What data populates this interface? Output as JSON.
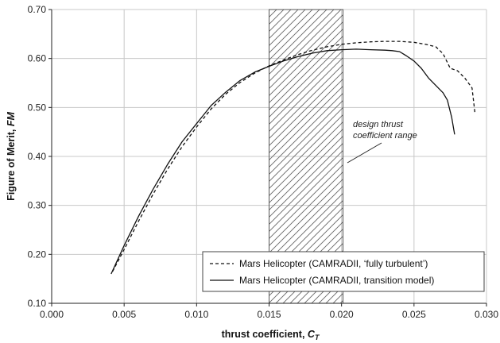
{
  "chart_data": {
    "type": "line",
    "xlabel": "thrust coefficient, ",
    "xlabel_var": "C",
    "xlabel_sub": "T",
    "ylabel": "Figure of Merit, ",
    "ylabel_var": "FM",
    "xlim": [
      0.0,
      0.03
    ],
    "ylim": [
      0.1,
      0.7
    ],
    "x_ticks": [
      "0.000",
      "0.005",
      "0.010",
      "0.015",
      "0.020",
      "0.025",
      "0.030"
    ],
    "y_ticks": [
      "0.10",
      "0.20",
      "0.30",
      "0.40",
      "0.50",
      "0.60",
      "0.70"
    ],
    "grid": true,
    "legend_position": "bottom-right",
    "shaded_region": {
      "x_start": 0.015,
      "x_end": 0.0201,
      "pattern": "diagonal-hatch"
    },
    "annotation": {
      "line1": "design thrust",
      "line2": "coefficient range"
    },
    "series": [
      {
        "name": "Mars Helicopter (CAMRADII, ‘fully turbulent’)",
        "style": "dashed",
        "x": [
          0.0042,
          0.005,
          0.006,
          0.007,
          0.008,
          0.009,
          0.01,
          0.011,
          0.012,
          0.013,
          0.014,
          0.015,
          0.016,
          0.017,
          0.018,
          0.019,
          0.02,
          0.021,
          0.022,
          0.023,
          0.024,
          0.025,
          0.0258,
          0.0265,
          0.027,
          0.0275,
          0.028,
          0.0285,
          0.029,
          0.0292
        ],
        "y": [
          0.165,
          0.21,
          0.268,
          0.323,
          0.374,
          0.42,
          0.46,
          0.497,
          0.527,
          0.551,
          0.57,
          0.585,
          0.597,
          0.608,
          0.617,
          0.624,
          0.629,
          0.632,
          0.634,
          0.635,
          0.635,
          0.633,
          0.629,
          0.624,
          0.61,
          0.58,
          0.575,
          0.56,
          0.54,
          0.49
        ]
      },
      {
        "name": "Mars Helicopter (CAMRADII, transition model)",
        "style": "solid",
        "x": [
          0.0041,
          0.005,
          0.006,
          0.007,
          0.008,
          0.009,
          0.01,
          0.011,
          0.012,
          0.013,
          0.014,
          0.015,
          0.016,
          0.017,
          0.018,
          0.019,
          0.02,
          0.021,
          0.022,
          0.023,
          0.0235,
          0.024,
          0.0245,
          0.025,
          0.0255,
          0.026,
          0.0265,
          0.027,
          0.0273,
          0.0276,
          0.0278
        ],
        "y": [
          0.16,
          0.218,
          0.278,
          0.333,
          0.384,
          0.43,
          0.467,
          0.504,
          0.531,
          0.555,
          0.572,
          0.584,
          0.595,
          0.604,
          0.611,
          0.616,
          0.618,
          0.619,
          0.618,
          0.617,
          0.616,
          0.614,
          0.605,
          0.595,
          0.58,
          0.56,
          0.545,
          0.53,
          0.515,
          0.48,
          0.445
        ]
      }
    ]
  }
}
